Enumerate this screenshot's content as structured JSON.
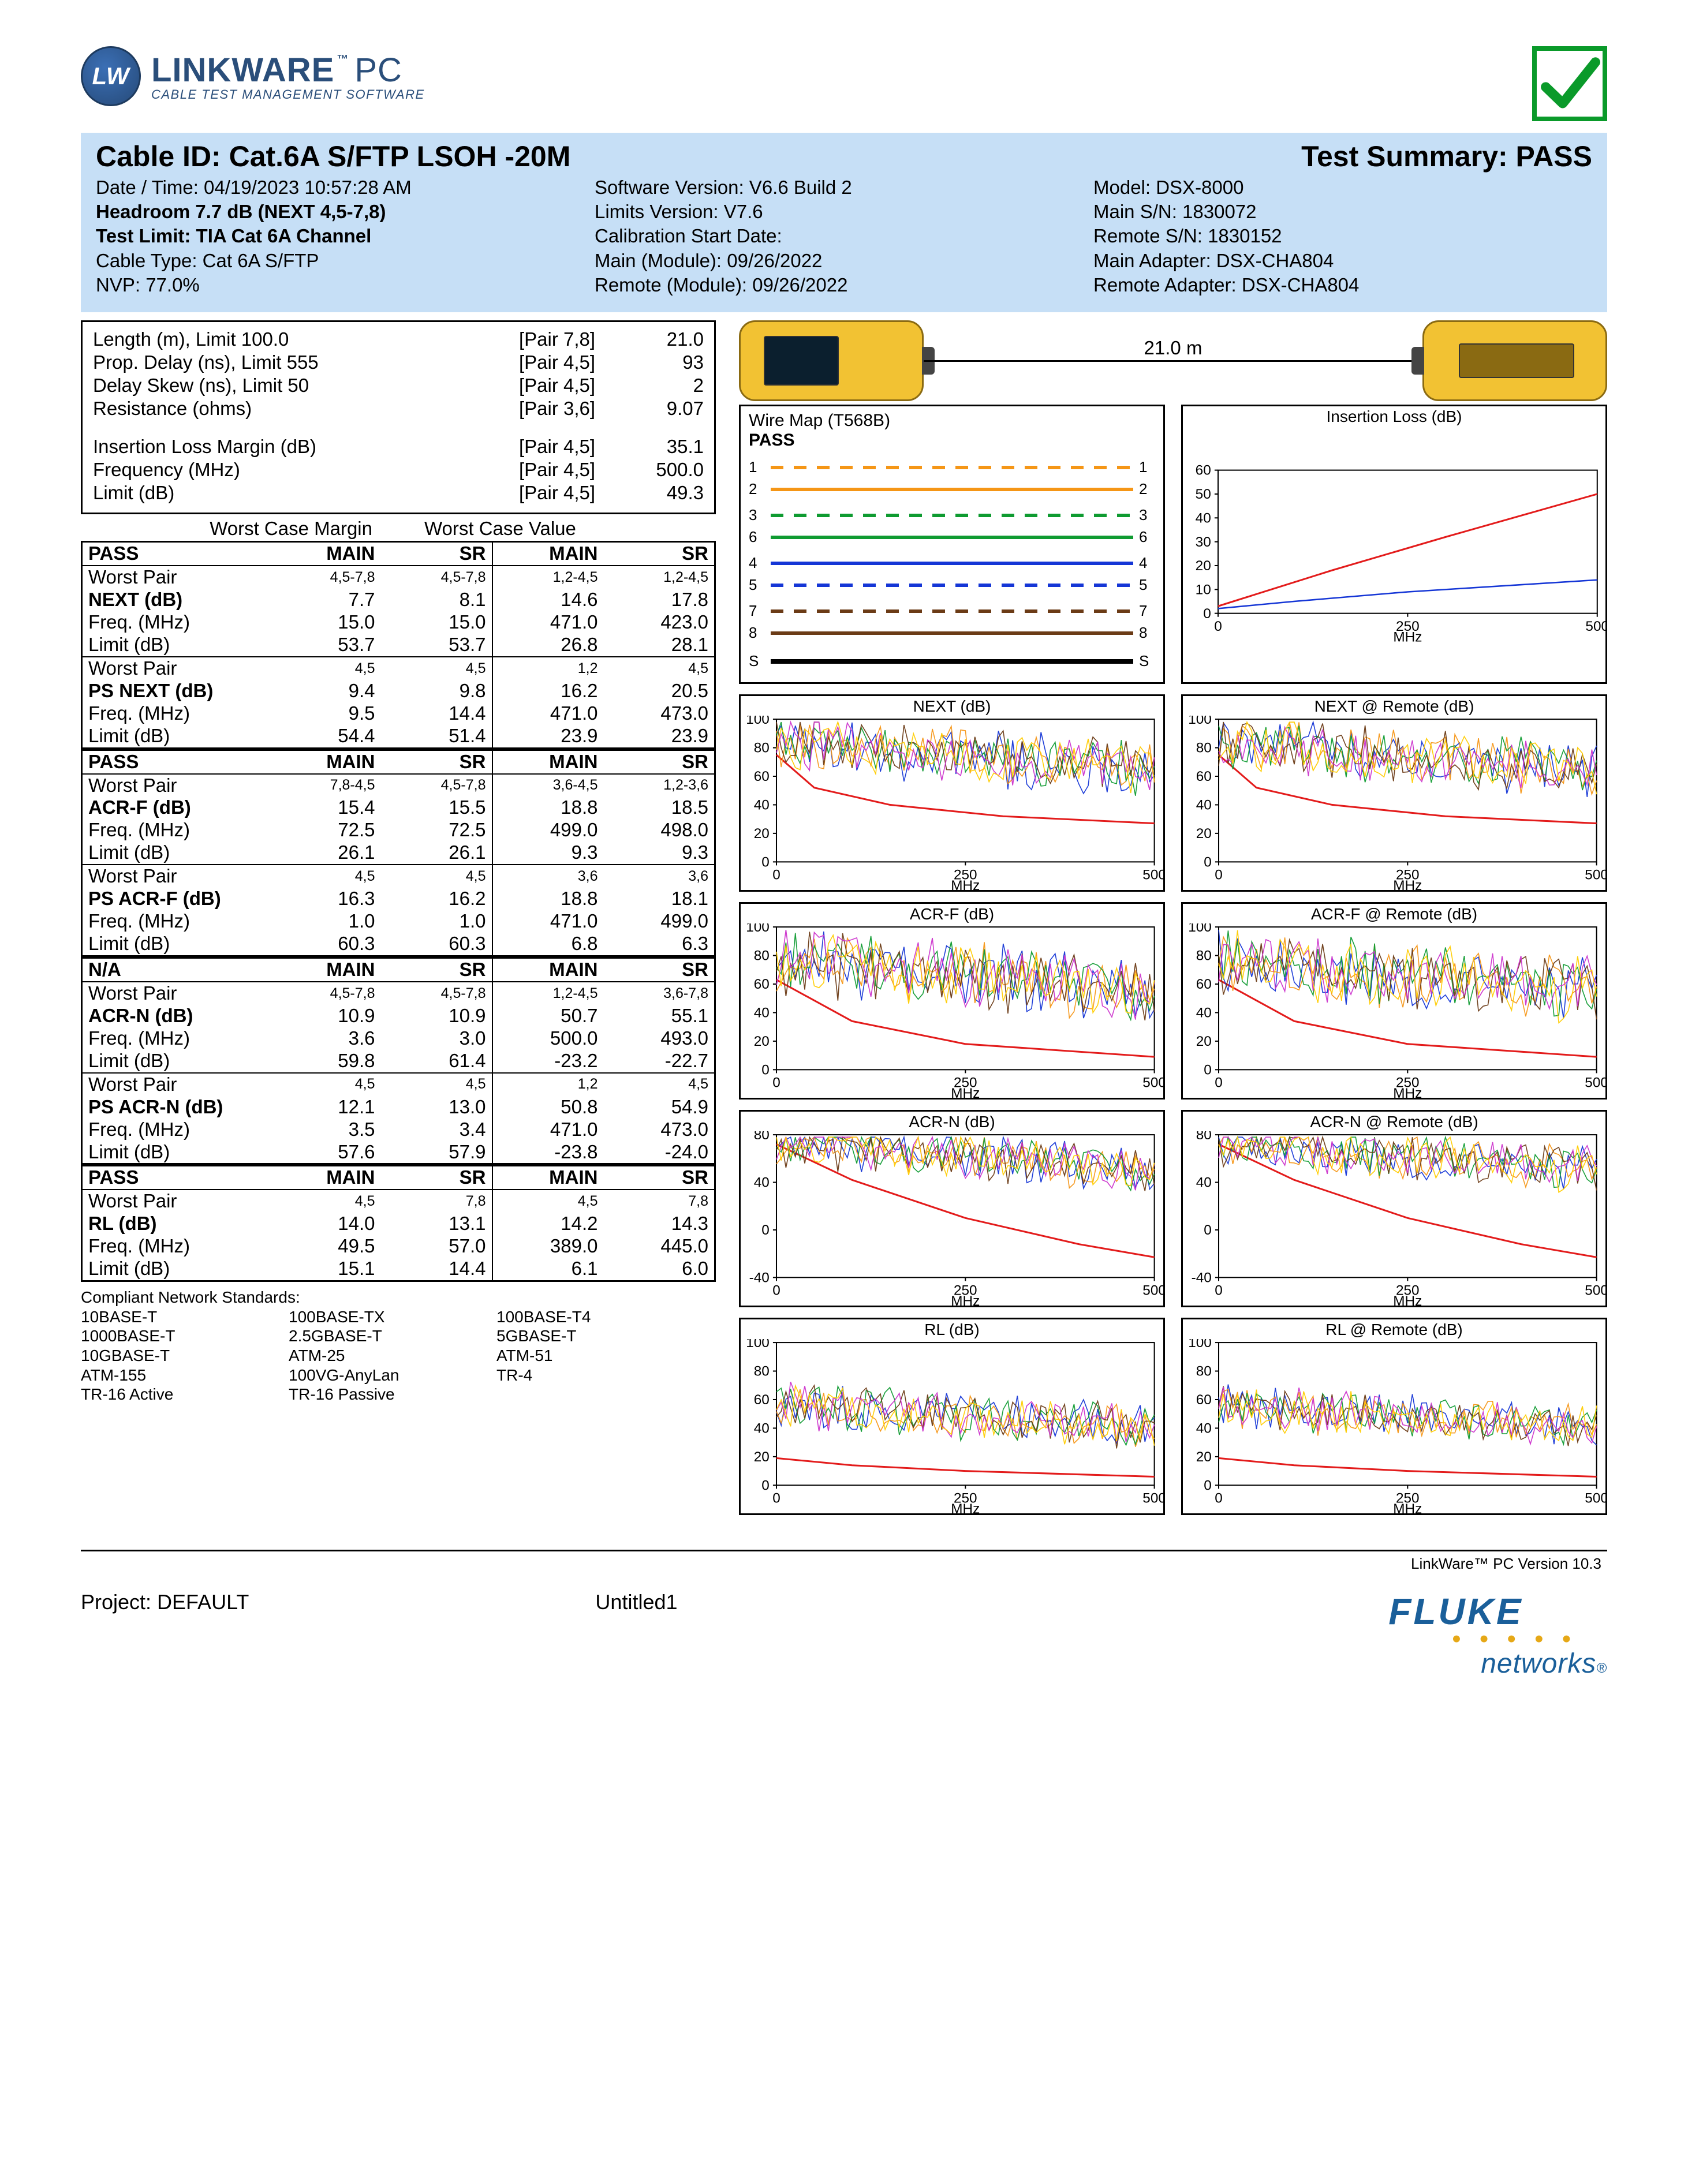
{
  "header": {
    "logo_line1_a": "LINK",
    "logo_line1_b": "WARE",
    "logo_tm": "™",
    "logo_pc": "PC",
    "logo_line2": "CABLE TEST MANAGEMENT SOFTWARE",
    "title_left": "Cable ID: Cat.6A S/FTP LSOH -20M",
    "title_right": "Test Summary: PASS",
    "col1": {
      "l1": "Date / Time: 04/19/2023  10:57:28 AM",
      "l2": "Headroom 7.7 dB (NEXT 4,5-7,8)",
      "l3": "Test Limit: TIA Cat 6A Channel",
      "l4": "Cable Type: Cat 6A S/FTP",
      "l5": "NVP: 77.0%"
    },
    "col2": {
      "l1": "Software Version: V6.6 Build 2",
      "l2": "Limits Version: V7.6",
      "l3": "Calibration Start Date:",
      "l4": "Main (Module): 09/26/2022",
      "l5": "Remote (Module): 09/26/2022"
    },
    "col3": {
      "l1": "Model: DSX-8000",
      "l2": "Main S/N: 1830072",
      "l3": "Remote S/N: 1830152",
      "l4": "Main Adapter: DSX-CHA804",
      "l5": "Remote Adapter: DSX-CHA804"
    }
  },
  "summary": {
    "rows": [
      {
        "a": "Length (m), Limit 100.0",
        "b": "[Pair 7,8]",
        "c": "21.0"
      },
      {
        "a": "Prop. Delay (ns), Limit 555",
        "b": "[Pair 4,5]",
        "c": "93"
      },
      {
        "a": "Delay Skew (ns), Limit 50",
        "b": "[Pair 4,5]",
        "c": "2"
      },
      {
        "a": "Resistance (ohms)",
        "b": "[Pair 3,6]",
        "c": "9.07"
      }
    ],
    "rows2": [
      {
        "a": "Insertion Loss Margin (dB)",
        "b": "[Pair 4,5]",
        "c": "35.1"
      },
      {
        "a": "Frequency (MHz)",
        "b": "[Pair 4,5]",
        "c": "500.0"
      },
      {
        "a": "Limit (dB)",
        "b": "[Pair 4,5]",
        "c": "49.3"
      }
    ]
  },
  "wc_left": "Worst Case Margin",
  "wc_right": "Worst Case Value",
  "tables": [
    {
      "hdr": {
        "c1": "PASS",
        "c2": "MAIN",
        "c3": "SR",
        "c4": "MAIN",
        "c5": "SR"
      },
      "groups": [
        {
          "pair": {
            "c1": "Worst Pair",
            "c2": "4,5-7,8",
            "c3": "4,5-7,8",
            "c4": "1,2-4,5",
            "c5": "1,2-4,5"
          },
          "rows": [
            {
              "c1": "NEXT (dB)",
              "c2": "7.7",
              "c3": "8.1",
              "c4": "14.6",
              "c5": "17.8",
              "b": true
            },
            {
              "c1": "Freq. (MHz)",
              "c2": "15.0",
              "c3": "15.0",
              "c4": "471.0",
              "c5": "423.0"
            },
            {
              "c1": "Limit (dB)",
              "c2": "53.7",
              "c3": "53.7",
              "c4": "26.8",
              "c5": "28.1"
            }
          ]
        },
        {
          "pair": {
            "c1": "Worst Pair",
            "c2": "4,5",
            "c3": "4,5",
            "c4": "1,2",
            "c5": "4,5"
          },
          "rows": [
            {
              "c1": "PS NEXT (dB)",
              "c2": "9.4",
              "c3": "9.8",
              "c4": "16.2",
              "c5": "20.5",
              "b": true
            },
            {
              "c1": "Freq. (MHz)",
              "c2": "9.5",
              "c3": "14.4",
              "c4": "471.0",
              "c5": "473.0"
            },
            {
              "c1": "Limit (dB)",
              "c2": "54.4",
              "c3": "51.4",
              "c4": "23.9",
              "c5": "23.9"
            }
          ]
        }
      ]
    },
    {
      "hdr": {
        "c1": "PASS",
        "c2": "MAIN",
        "c3": "SR",
        "c4": "MAIN",
        "c5": "SR"
      },
      "groups": [
        {
          "pair": {
            "c1": "Worst Pair",
            "c2": "7,8-4,5",
            "c3": "4,5-7,8",
            "c4": "3,6-4,5",
            "c5": "1,2-3,6"
          },
          "rows": [
            {
              "c1": "ACR-F (dB)",
              "c2": "15.4",
              "c3": "15.5",
              "c4": "18.8",
              "c5": "18.5",
              "b": true
            },
            {
              "c1": "Freq. (MHz)",
              "c2": "72.5",
              "c3": "72.5",
              "c4": "499.0",
              "c5": "498.0"
            },
            {
              "c1": "Limit (dB)",
              "c2": "26.1",
              "c3": "26.1",
              "c4": "9.3",
              "c5": "9.3"
            }
          ]
        },
        {
          "pair": {
            "c1": "Worst Pair",
            "c2": "4,5",
            "c3": "4,5",
            "c4": "3,6",
            "c5": "3,6"
          },
          "rows": [
            {
              "c1": "PS ACR-F (dB)",
              "c2": "16.3",
              "c3": "16.2",
              "c4": "18.8",
              "c5": "18.1",
              "b": true
            },
            {
              "c1": "Freq. (MHz)",
              "c2": "1.0",
              "c3": "1.0",
              "c4": "471.0",
              "c5": "499.0"
            },
            {
              "c1": "Limit (dB)",
              "c2": "60.3",
              "c3": "60.3",
              "c4": "6.8",
              "c5": "6.3"
            }
          ]
        }
      ]
    },
    {
      "hdr": {
        "c1": "N/A",
        "c2": "MAIN",
        "c3": "SR",
        "c4": "MAIN",
        "c5": "SR"
      },
      "groups": [
        {
          "pair": {
            "c1": "Worst Pair",
            "c2": "4,5-7,8",
            "c3": "4,5-7,8",
            "c4": "1,2-4,5",
            "c5": "3,6-7,8"
          },
          "rows": [
            {
              "c1": "ACR-N (dB)",
              "c2": "10.9",
              "c3": "10.9",
              "c4": "50.7",
              "c5": "55.1",
              "b": true
            },
            {
              "c1": "Freq. (MHz)",
              "c2": "3.6",
              "c3": "3.0",
              "c4": "500.0",
              "c5": "493.0"
            },
            {
              "c1": "Limit (dB)",
              "c2": "59.8",
              "c3": "61.4",
              "c4": "-23.2",
              "c5": "-22.7"
            }
          ]
        },
        {
          "pair": {
            "c1": "Worst Pair",
            "c2": "4,5",
            "c3": "4,5",
            "c4": "1,2",
            "c5": "4,5"
          },
          "rows": [
            {
              "c1": "PS ACR-N (dB)",
              "c2": "12.1",
              "c3": "13.0",
              "c4": "50.8",
              "c5": "54.9",
              "b": true
            },
            {
              "c1": "Freq. (MHz)",
              "c2": "3.5",
              "c3": "3.4",
              "c4": "471.0",
              "c5": "473.0"
            },
            {
              "c1": "Limit (dB)",
              "c2": "57.6",
              "c3": "57.9",
              "c4": "-23.8",
              "c5": "-24.0"
            }
          ]
        }
      ]
    },
    {
      "hdr": {
        "c1": "PASS",
        "c2": "MAIN",
        "c3": "SR",
        "c4": "MAIN",
        "c5": "SR"
      },
      "groups": [
        {
          "pair": {
            "c1": "Worst Pair",
            "c2": "4,5",
            "c3": "7,8",
            "c4": "4,5",
            "c5": "7,8"
          },
          "rows": [
            {
              "c1": "RL (dB)",
              "c2": "14.0",
              "c3": "13.1",
              "c4": "14.2",
              "c5": "14.3",
              "b": true
            },
            {
              "c1": "Freq. (MHz)",
              "c2": "49.5",
              "c3": "57.0",
              "c4": "389.0",
              "c5": "445.0"
            },
            {
              "c1": "Limit (dB)",
              "c2": "15.1",
              "c3": "14.4",
              "c4": "6.1",
              "c5": "6.0"
            }
          ]
        }
      ]
    }
  ],
  "standards": {
    "title": "Compliant Network Standards:",
    "items": [
      "10BASE-T",
      "100BASE-TX",
      "100BASE-T4",
      "1000BASE-T",
      "2.5GBASE-T",
      "5GBASE-T",
      "10GBASE-T",
      "ATM-25",
      "ATM-51",
      "ATM-155",
      "100VG-AnyLan",
      "TR-4",
      "TR-16 Active",
      "TR-16 Passive",
      ""
    ]
  },
  "devices": {
    "length_label": "21.0 m"
  },
  "wiremap": {
    "title": "Wire Map (T568B)",
    "pass": "PASS",
    "pairs": [
      {
        "l": "1",
        "r": "1",
        "c": "#f59616",
        "style": "dashed"
      },
      {
        "l": "2",
        "r": "2",
        "c": "#f59616",
        "style": "solid"
      },
      {
        "l": "3",
        "r": "3",
        "c": "#0f9b31",
        "style": "dashed"
      },
      {
        "l": "6",
        "r": "6",
        "c": "#0f9b31",
        "style": "solid"
      },
      {
        "l": "4",
        "r": "4",
        "c": "#1536d6",
        "style": "solid"
      },
      {
        "l": "5",
        "r": "5",
        "c": "#1536d6",
        "style": "dashed"
      },
      {
        "l": "7",
        "r": "7",
        "c": "#6b3b16",
        "style": "dashed"
      },
      {
        "l": "8",
        "r": "8",
        "c": "#6b3b16",
        "style": "solid"
      }
    ],
    "shield": {
      "l": "S",
      "r": "S"
    }
  },
  "charts": {
    "xaxis_label": "MHz",
    "x_ticks": [
      0,
      250,
      500
    ],
    "colors": {
      "limit": "#e31b1b",
      "series": [
        "#1536d6",
        "#f59616",
        "#0f9b31",
        "#6b3b16",
        "#cc33cc",
        "#ffcc00",
        "#00a6a6",
        "#8888ff"
      ],
      "ytick": "#c0c0c0",
      "axis": "#000000",
      "background": "#ffffff"
    },
    "list": [
      {
        "title": "Insertion Loss (dB)",
        "ymin": 0,
        "ymax": 60,
        "ystep": 10,
        "limit": [
          [
            0,
            3
          ],
          [
            50,
            8
          ],
          [
            150,
            18
          ],
          [
            300,
            32
          ],
          [
            500,
            50
          ]
        ],
        "series": [
          [
            [
              0,
              2
            ],
            [
              100,
              5
            ],
            [
              250,
              9
            ],
            [
              400,
              12
            ],
            [
              500,
              14
            ]
          ]
        ],
        "noise": false,
        "wide_right": true
      },
      {
        "title": "NEXT (dB)",
        "ymin": 0,
        "ymax": 100,
        "ystep": 20,
        "limit": [
          [
            0,
            75
          ],
          [
            50,
            52
          ],
          [
            150,
            40
          ],
          [
            300,
            32
          ],
          [
            500,
            27
          ]
        ],
        "noise": true,
        "noise_low": 40,
        "noise_high": 95
      },
      {
        "title": "NEXT @ Remote (dB)",
        "ymin": 0,
        "ymax": 100,
        "ystep": 20,
        "limit": [
          [
            0,
            75
          ],
          [
            50,
            52
          ],
          [
            150,
            40
          ],
          [
            300,
            32
          ],
          [
            500,
            27
          ]
        ],
        "noise": true,
        "noise_low": 40,
        "noise_high": 95
      },
      {
        "title": "ACR-F (dB)",
        "ymin": 0,
        "ymax": 100,
        "ystep": 20,
        "limit": [
          [
            0,
            63
          ],
          [
            100,
            34
          ],
          [
            250,
            18
          ],
          [
            500,
            9
          ]
        ],
        "noise": true,
        "noise_low": 25,
        "noise_high": 90
      },
      {
        "title": "ACR-F @ Remote (dB)",
        "ymin": 0,
        "ymax": 100,
        "ystep": 20,
        "limit": [
          [
            0,
            63
          ],
          [
            100,
            34
          ],
          [
            250,
            18
          ],
          [
            500,
            9
          ]
        ],
        "noise": true,
        "noise_low": 25,
        "noise_high": 90
      },
      {
        "title": "ACR-N (dB)",
        "ymin": -40,
        "ymax": 80,
        "ystep": 40,
        "limit": [
          [
            0,
            72
          ],
          [
            100,
            42
          ],
          [
            250,
            10
          ],
          [
            400,
            -12
          ],
          [
            500,
            -23
          ]
        ],
        "noise": true,
        "noise_low": 30,
        "noise_high": 85,
        "compress_top": true
      },
      {
        "title": "ACR-N @ Remote (dB)",
        "ymin": -40,
        "ymax": 80,
        "ystep": 40,
        "limit": [
          [
            0,
            72
          ],
          [
            100,
            42
          ],
          [
            250,
            10
          ],
          [
            400,
            -12
          ],
          [
            500,
            -23
          ]
        ],
        "noise": true,
        "noise_low": 30,
        "noise_high": 85,
        "compress_top": true
      },
      {
        "title": "RL (dB)",
        "ymin": 0,
        "ymax": 100,
        "ystep": 20,
        "limit": [
          [
            0,
            19
          ],
          [
            100,
            14
          ],
          [
            250,
            10
          ],
          [
            500,
            6
          ]
        ],
        "noise": true,
        "noise_low": 20,
        "noise_high": 65
      },
      {
        "title": "RL @ Remote (dB)",
        "ymin": 0,
        "ymax": 100,
        "ystep": 20,
        "limit": [
          [
            0,
            19
          ],
          [
            100,
            14
          ],
          [
            250,
            10
          ],
          [
            500,
            6
          ]
        ],
        "noise": true,
        "noise_low": 20,
        "noise_high": 65
      }
    ]
  },
  "footer": {
    "version": "LinkWare™ PC Version 10.3",
    "project_label": "Project: DEFAULT",
    "file": "Untitled1",
    "fluke": "FLUKE",
    "networks": "networks",
    "reg": "®"
  }
}
